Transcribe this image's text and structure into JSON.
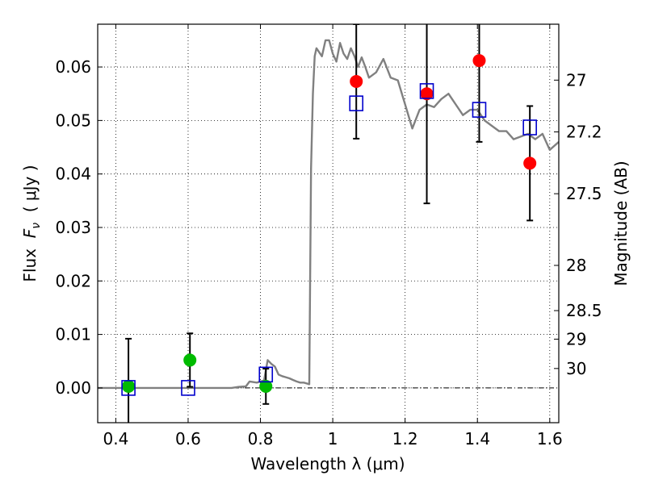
{
  "chart_data": {
    "type": "scatter",
    "xlabel": "Wavelength  λ (μm)",
    "ylabel": "Flux  F_ν  ( μJy )",
    "ylabel_parts": {
      "prefix": "Flux  ",
      "symbol": "F",
      "subscript": "ν",
      "unit": "  ( μJy )"
    },
    "y2label": "Magnitude (AB)",
    "xlim": [
      0.35,
      1.625
    ],
    "ylim": [
      -0.0065,
      0.068
    ],
    "grid": true,
    "x_ticks": [
      {
        "value": 0.4,
        "label": "0.4"
      },
      {
        "value": 0.6,
        "label": "0.6"
      },
      {
        "value": 0.8,
        "label": "0.8"
      },
      {
        "value": 1.0,
        "label": "1"
      },
      {
        "value": 1.2,
        "label": "1.2"
      },
      {
        "value": 1.4,
        "label": "1.4"
      },
      {
        "value": 1.6,
        "label": "1.6"
      }
    ],
    "y_ticks": [
      {
        "value": 0.0,
        "label": "0.00"
      },
      {
        "value": 0.01,
        "label": "0.01"
      },
      {
        "value": 0.02,
        "label": "0.02"
      },
      {
        "value": 0.03,
        "label": "0.03"
      },
      {
        "value": 0.04,
        "label": "0.04"
      },
      {
        "value": 0.05,
        "label": "0.05"
      },
      {
        "value": 0.06,
        "label": "0.06"
      }
    ],
    "y2_ticks": [
      {
        "value": 27.0,
        "label": "27"
      },
      {
        "value": 27.2,
        "label": "27.2"
      },
      {
        "value": 27.5,
        "label": "27.5"
      },
      {
        "value": 28.0,
        "label": "28"
      },
      {
        "value": 28.5,
        "label": "28.5"
      },
      {
        "value": 29.0,
        "label": "29"
      },
      {
        "value": 30.0,
        "label": "30"
      }
    ],
    "colors": {
      "model": "#808080",
      "detections": "#ff0000",
      "dropouts": "#00bb00",
      "model_photometry": "#0000cc",
      "errorbars": "#000000",
      "zero_line": "#000000"
    },
    "series": [
      {
        "kind": "line",
        "x": [
          0.35,
          0.6,
          0.72,
          0.74,
          0.76,
          0.77,
          0.79,
          0.8,
          0.81,
          0.82,
          0.83,
          0.84,
          0.85,
          0.86,
          0.87,
          0.88,
          0.89,
          0.9,
          0.91,
          0.92,
          0.93,
          0.935,
          0.94,
          0.945,
          0.95,
          0.955,
          0.96,
          0.97,
          0.98,
          0.99,
          1.0,
          1.01,
          1.02,
          1.03,
          1.04,
          1.05,
          1.06,
          1.07,
          1.08,
          1.09,
          1.1,
          1.12,
          1.14,
          1.16,
          1.18,
          1.2,
          1.22,
          1.24,
          1.26,
          1.28,
          1.3,
          1.32,
          1.34,
          1.36,
          1.38,
          1.4,
          1.42,
          1.44,
          1.46,
          1.48,
          1.5,
          1.52,
          1.54,
          1.56,
          1.58,
          1.6,
          1.625
        ],
        "y": [
          0.0,
          0.0,
          0.0,
          0.0002,
          0.0003,
          0.0012,
          0.001,
          0.0012,
          0.0014,
          0.0052,
          0.0045,
          0.004,
          0.0025,
          0.0022,
          0.002,
          0.0018,
          0.0015,
          0.0012,
          0.001,
          0.001,
          0.0008,
          0.0007,
          0.041,
          0.055,
          0.062,
          0.0635,
          0.063,
          0.062,
          0.065,
          0.065,
          0.0625,
          0.061,
          0.0645,
          0.0625,
          0.0615,
          0.0635,
          0.062,
          0.06,
          0.0618,
          0.06,
          0.058,
          0.059,
          0.0615,
          0.058,
          0.0575,
          0.053,
          0.0485,
          0.052,
          0.053,
          0.0525,
          0.054,
          0.055,
          0.053,
          0.051,
          0.052,
          0.052,
          0.05,
          0.049,
          0.048,
          0.048,
          0.0465,
          0.047,
          0.0475,
          0.0465,
          0.0475,
          0.0445,
          0.046
        ]
      },
      {
        "kind": "points_circle",
        "x": [
          1.065,
          1.26,
          1.405,
          1.545
        ],
        "y": [
          0.0573,
          0.055,
          0.0612,
          0.042
        ],
        "err_low": [
          0.0107,
          0.0205,
          0.0152,
          0.0107
        ],
        "err_high": [
          0.0107,
          0.0205,
          0.0152,
          0.0107
        ]
      },
      {
        "kind": "points_circle",
        "x": [
          0.435,
          0.605,
          0.815
        ],
        "y": [
          0.0003,
          0.0052,
          0.0003
        ],
        "err_low": [
          0.0089,
          0.005,
          0.0033
        ],
        "err_high": [
          0.0089,
          0.005,
          0.0033
        ]
      },
      {
        "kind": "points_square",
        "x": [
          0.435,
          0.6,
          0.815,
          1.065,
          1.26,
          1.405,
          1.545
        ],
        "y": [
          0.0,
          0.0,
          0.0025,
          0.0532,
          0.0555,
          0.052,
          0.0487
        ]
      }
    ]
  }
}
